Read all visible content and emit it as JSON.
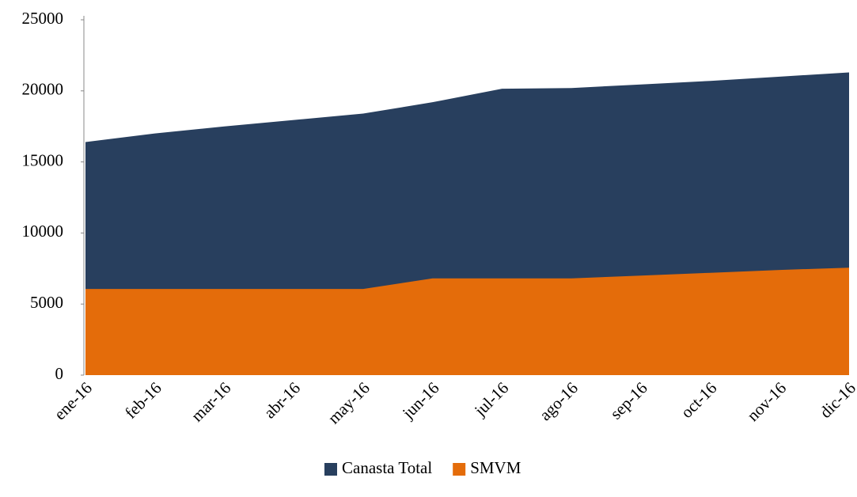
{
  "chart_data": {
    "type": "area",
    "categories": [
      "ene-16",
      "feb-16",
      "mar-16",
      "abr-16",
      "may-16",
      "jun-16",
      "jul-16",
      "ago-16",
      "sep-16",
      "oct-16",
      "nov-16",
      "dic-16"
    ],
    "series": [
      {
        "name": "Canasta Total",
        "color": "#283f5e",
        "values": [
          16400,
          17000,
          17500,
          17950,
          18400,
          19200,
          20150,
          20200,
          20450,
          20700,
          21000,
          21300
        ]
      },
      {
        "name": "SMVM",
        "color": "#e46c0a",
        "values": [
          6060,
          6060,
          6060,
          6060,
          6060,
          6810,
          6810,
          6810,
          7000,
          7200,
          7400,
          7560
        ]
      }
    ],
    "ylim": [
      0,
      25000
    ],
    "yticks": [
      0,
      5000,
      10000,
      15000,
      20000,
      25000
    ],
    "legend": "bottom"
  }
}
